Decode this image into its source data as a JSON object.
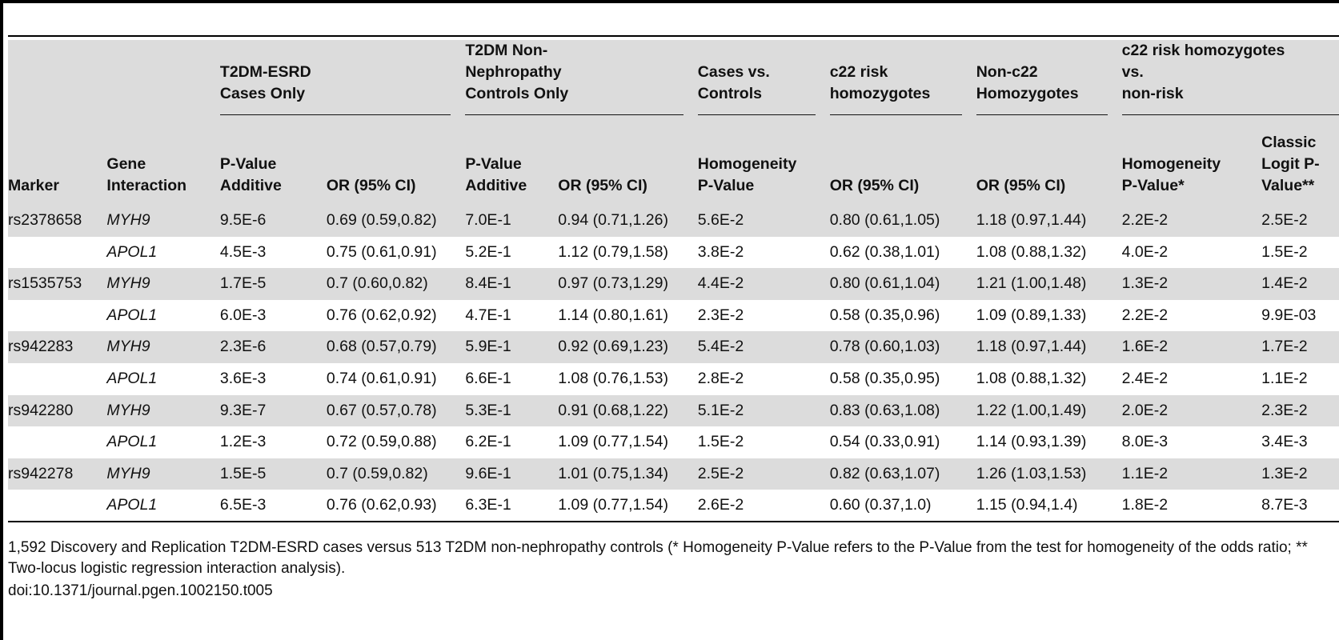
{
  "table": {
    "group_headers": {
      "cases_only": "T2DM-ESRD Cases Only",
      "controls_only": "T2DM Non-Nephropathy Controls Only",
      "cases_vs_controls": "Cases vs. Controls",
      "c22_risk": "c22 risk homozygotes",
      "non_c22": "Non-c22 Homozygotes",
      "risk_vs_nonrisk": "c22 risk homozygotes vs. non-risk"
    },
    "group_header_lines": {
      "cases_only": [
        "T2DM-ESRD",
        "Cases Only"
      ],
      "controls_only": [
        "T2DM Non-",
        "Nephropathy",
        "Controls Only"
      ],
      "cases_vs_controls": [
        "Cases vs.",
        "Controls"
      ],
      "c22_risk": [
        "c22 risk",
        "homozygotes"
      ],
      "non_c22": [
        "Non-c22",
        "Homozygotes"
      ],
      "risk_vs_nonrisk": [
        "c22 risk homozygotes",
        "vs.",
        "non-risk"
      ]
    },
    "columns": [
      [
        "Marker"
      ],
      [
        "Gene",
        "Interaction"
      ],
      [
        "P-Value",
        "Additive"
      ],
      [
        "OR (95% CI)"
      ],
      [
        "P-Value",
        "Additive"
      ],
      [
        "OR (95% CI)"
      ],
      [
        "Homogeneity",
        "P-Value"
      ],
      [
        "OR (95% CI)"
      ],
      [
        "OR (95% CI)"
      ],
      [
        "Homogeneity",
        "P-Value*"
      ],
      [
        "Classic",
        "Logit P-",
        "Value**"
      ]
    ],
    "rows": [
      [
        "rs2378658",
        "MYH9",
        "9.5E-6",
        "0.69 (0.59,0.82)",
        "7.0E-1",
        "0.94 (0.71,1.26)",
        "5.6E-2",
        "0.80 (0.61,1.05)",
        "1.18 (0.97,1.44)",
        "2.2E-2",
        "2.5E-2"
      ],
      [
        "",
        "APOL1",
        "4.5E-3",
        "0.75 (0.61,0.91)",
        "5.2E-1",
        "1.12 (0.79,1.58)",
        "3.8E-2",
        "0.62 (0.38,1.01)",
        "1.08 (0.88,1.32)",
        "4.0E-2",
        "1.5E-2"
      ],
      [
        "rs1535753",
        "MYH9",
        "1.7E-5",
        "0.7 (0.60,0.82)",
        "8.4E-1",
        "0.97 (0.73,1.29)",
        "4.4E-2",
        "0.80 (0.61,1.04)",
        "1.21 (1.00,1.48)",
        "1.3E-2",
        "1.4E-2"
      ],
      [
        "",
        "APOL1",
        "6.0E-3",
        "0.76 (0.62,0.92)",
        "4.7E-1",
        "1.14 (0.80,1.61)",
        "2.3E-2",
        "0.58 (0.35,0.96)",
        "1.09 (0.89,1.33)",
        "2.2E-2",
        "9.9E-03"
      ],
      [
        "rs942283",
        "MYH9",
        "2.3E-6",
        "0.68 (0.57,0.79)",
        "5.9E-1",
        "0.92 (0.69,1.23)",
        "5.4E-2",
        "0.78 (0.60,1.03)",
        "1.18 (0.97,1.44)",
        "1.6E-2",
        "1.7E-2"
      ],
      [
        "",
        "APOL1",
        "3.6E-3",
        "0.74 (0.61,0.91)",
        "6.6E-1",
        "1.08 (0.76,1.53)",
        "2.8E-2",
        "0.58 (0.35,0.95)",
        "1.08 (0.88,1.32)",
        "2.4E-2",
        "1.1E-2"
      ],
      [
        "rs942280",
        "MYH9",
        "9.3E-7",
        "0.67 (0.57,0.78)",
        "5.3E-1",
        "0.91 (0.68,1.22)",
        "5.1E-2",
        "0.83 (0.63,1.08)",
        "1.22 (1.00,1.49)",
        "2.0E-2",
        "2.3E-2"
      ],
      [
        "",
        "APOL1",
        "1.2E-3",
        "0.72 (0.59,0.88)",
        "6.2E-1",
        "1.09 (0.77,1.54)",
        "1.5E-2",
        "0.54 (0.33,0.91)",
        "1.14 (0.93,1.39)",
        "8.0E-3",
        "3.4E-3"
      ],
      [
        "rs942278",
        "MYH9",
        "1.5E-5",
        "0.7 (0.59,0.82)",
        "9.6E-1",
        "1.01 (0.75,1.34)",
        "2.5E-2",
        "0.82 (0.63,1.07)",
        "1.26 (1.03,1.53)",
        "1.1E-2",
        "1.3E-2"
      ],
      [
        "",
        "APOL1",
        "6.5E-3",
        "0.76 (0.62,0.93)",
        "6.3E-1",
        "1.09 (0.77,1.54)",
        "2.6E-2",
        "0.60 (0.37,1.0)",
        "1.15 (0.94,1.4)",
        "1.8E-2",
        "8.7E-3"
      ]
    ]
  },
  "footnote": "1,592 Discovery and Replication T2DM-ESRD cases versus 513 T2DM non-nephropathy controls (* Homogeneity P-Value refers to the P-Value from the test for homogeneity of the odds ratio; ** Two-locus logistic regression interaction analysis).",
  "doi": "doi:10.1371/journal.pgen.1002150.t005"
}
